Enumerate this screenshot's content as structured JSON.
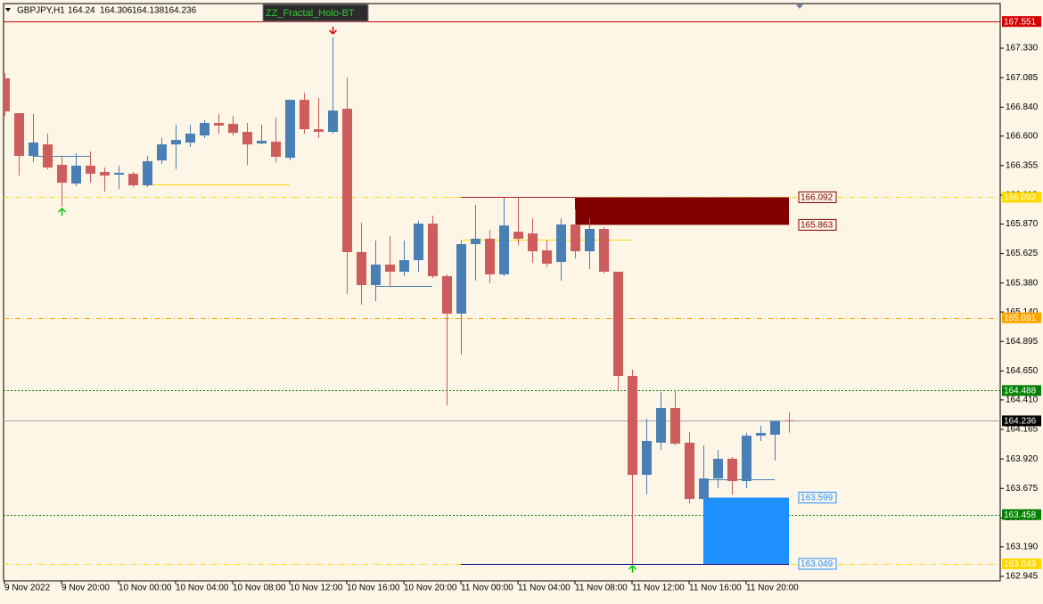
{
  "chart_data": {
    "type": "candlestick",
    "symbol": "GBPJPY,H1",
    "indicator": "ZZ_Fractal_Holo-BT",
    "x": [
      "9 Nov 2022",
      null,
      null,
      null,
      "9 Nov 20:00",
      null,
      null,
      null,
      "10 Nov 00:00",
      null,
      null,
      null,
      "10 Nov 04:00",
      null,
      null,
      null,
      "10 Nov 08:00",
      null,
      null,
      null,
      "10 Nov 12:00",
      null,
      null,
      null,
      "10 Nov 16:00",
      null,
      null,
      null,
      "10 Nov 20:00",
      null,
      null,
      null,
      "11 Nov 00:00",
      null,
      null,
      null,
      "11 Nov 04:00",
      null,
      null,
      null,
      "11 Nov 08:00",
      null,
      null,
      null,
      "11 Nov 12:00",
      null,
      null,
      null,
      "11 Nov 16:00",
      null,
      null,
      null,
      "11 Nov 20:00",
      null,
      null,
      null
    ],
    "open": [
      167.079,
      166.79,
      166.435,
      166.531,
      166.361,
      166.206,
      166.354,
      166.302,
      166.28,
      166.287,
      166.191,
      166.398,
      166.531,
      166.546,
      166.605,
      166.709,
      166.701,
      166.635,
      166.539,
      166.553,
      166.42,
      166.901,
      166.657,
      166.635,
      166.827,
      165.637,
      165.363,
      165.533,
      165.474,
      165.57,
      165.873,
      165.437,
      165.126,
      165.703,
      165.748,
      165.452,
      165.806,
      165.792,
      165.651,
      165.555,
      165.866,
      165.644,
      165.829,
      165.474,
      164.609,
      163.788,
      164.055,
      164.343,
      164.055,
      163.588,
      163.758,
      163.921,
      163.736,
      164.113,
      164.121,
      164.24
    ],
    "high": [
      167.123,
      166.79,
      166.783,
      166.62,
      166.435,
      166.457,
      166.472,
      166.339,
      166.354,
      166.302,
      166.435,
      166.583,
      166.694,
      166.694,
      166.731,
      166.783,
      166.768,
      166.709,
      166.694,
      166.753,
      166.901,
      166.96,
      166.916,
      167.419,
      167.086,
      165.88,
      165.733,
      165.77,
      165.733,
      165.895,
      165.94,
      165.452,
      165.733,
      166.029,
      165.821,
      166.088,
      166.088,
      165.918,
      165.733,
      165.918,
      165.992,
      165.918,
      165.844,
      165.474,
      164.661,
      164.254,
      164.476,
      164.491,
      164.143,
      164.032,
      163.995,
      163.936,
      164.136,
      164.195,
      164.236,
      164.306
    ],
    "low": [
      166.768,
      166.273,
      166.383,
      166.324,
      166.014,
      166.184,
      166.213,
      166.139,
      166.161,
      166.176,
      166.176,
      166.369,
      166.324,
      166.509,
      166.583,
      166.62,
      166.605,
      166.361,
      166.531,
      166.383,
      166.398,
      166.62,
      166.583,
      166.62,
      165.289,
      165.2,
      165.23,
      165.348,
      165.437,
      165.474,
      165.422,
      164.365,
      164.786,
      165.4,
      165.378,
      165.437,
      165.696,
      165.548,
      165.511,
      165.4,
      165.585,
      165.496,
      165.459,
      164.491,
      163.049,
      163.625,
      163.995,
      164.032,
      163.551,
      163.573,
      163.677,
      163.625,
      163.677,
      164.069,
      163.906,
      164.138
    ],
    "close": [
      166.805,
      166.435,
      166.546,
      166.339,
      166.213,
      166.354,
      166.287,
      166.272,
      166.295,
      166.191,
      166.391,
      166.531,
      166.568,
      166.62,
      166.709,
      166.687,
      166.627,
      166.531,
      166.561,
      166.428,
      166.901,
      166.657,
      166.635,
      166.812,
      165.637,
      165.363,
      165.533,
      165.474,
      165.57,
      165.873,
      165.437,
      165.126,
      165.703,
      165.748,
      165.452,
      165.858,
      165.748,
      165.644,
      165.541,
      165.866,
      165.644,
      165.829,
      165.474,
      164.609,
      163.788,
      164.069,
      164.343,
      164.047,
      163.588,
      163.758,
      163.921,
      163.736,
      164.113,
      164.136,
      164.236,
      164.236
    ],
    "up_color": "#4a7fb5",
    "down_color": "#cd5c5c",
    "ylim": [
      162.908,
      167.7
    ],
    "yticks": [
      {
        "value": 167.33,
        "label": "167.330"
      },
      {
        "value": 167.085,
        "label": "167.085"
      },
      {
        "value": 166.84,
        "label": "166.840"
      },
      {
        "value": 166.6,
        "label": "166.600"
      },
      {
        "value": 166.355,
        "label": "166.355"
      },
      {
        "value": 166.11,
        "label": "166.110"
      },
      {
        "value": 165.87,
        "label": "165.870"
      },
      {
        "value": 165.625,
        "label": "165.625"
      },
      {
        "value": 165.38,
        "label": "165.380"
      },
      {
        "value": 165.14,
        "label": "165.140"
      },
      {
        "value": 164.895,
        "label": "164.895"
      },
      {
        "value": 164.65,
        "label": "164.650"
      },
      {
        "value": 164.41,
        "label": "164.410"
      },
      {
        "value": 164.165,
        "label": "164.165"
      },
      {
        "value": 163.92,
        "label": "163.920"
      },
      {
        "value": 163.675,
        "label": "163.675"
      },
      {
        "value": 163.43,
        "label": "163.430"
      },
      {
        "value": 163.19,
        "label": "163.190"
      },
      {
        "value": 162.945,
        "label": "162.945"
      }
    ],
    "levels": [
      {
        "value": 167.551,
        "color": "#d40000",
        "dash": "none",
        "label_fill": "#d40000",
        "label_text": "#ffffff"
      },
      {
        "value": 166.092,
        "color": "#ffd700",
        "dash": "6 3 1 3",
        "label_fill": "#ffd700",
        "label_text": "#ffffff"
      },
      {
        "value": 165.091,
        "color": "#ffa500",
        "dash": "6 3 1 3",
        "label_fill": "#ffa500",
        "label_text": "#ffffff"
      },
      {
        "value": 164.488,
        "color": "#008000",
        "dash": "2 2",
        "label_fill": "#008000",
        "label_text": "#ffffff"
      },
      {
        "value": 164.236,
        "color": "#a0a8b0",
        "dash": "none",
        "label_fill": "#000000",
        "label_text": "#ffffff"
      },
      {
        "value": 163.458,
        "color": "#008000",
        "dash": "2 2",
        "label_fill": "#008000",
        "label_text": "#ffffff"
      },
      {
        "value": 163.049,
        "color": "#ffd700",
        "dash": "6 3 1 3",
        "label_fill": "#ffd700",
        "label_text": "#ffffff"
      }
    ],
    "zones": [
      {
        "top": 166.092,
        "bottom": 165.863,
        "from": 40,
        "to": 55,
        "color": "#800000",
        "label_color": "#800000"
      },
      {
        "top": 163.599,
        "bottom": 163.049,
        "from": 49,
        "to": 55,
        "color": "#1e90ff",
        "label_color": "#1e90ff"
      }
    ],
    "segments": [
      {
        "value": 166.092,
        "from": 32,
        "to": 40,
        "color": "#b22222"
      },
      {
        "value": 163.049,
        "from": 32,
        "to": 55,
        "color": "#000080"
      },
      {
        "value": 166.199,
        "from": 10,
        "to": 20,
        "color": "#ffd700"
      },
      {
        "value": 165.74,
        "from": 32,
        "to": 44,
        "color": "#ffd700"
      },
      {
        "value": 166.435,
        "from": 2,
        "to": 6,
        "color": "#4a7fb5"
      },
      {
        "value": 165.356,
        "from": 26,
        "to": 30,
        "color": "#4a7fb5"
      },
      {
        "value": 163.751,
        "from": 49,
        "to": 54,
        "color": "#4a7fb5"
      }
    ],
    "arrows": [
      {
        "index": 4,
        "dir": "up",
        "color": "#00c800"
      },
      {
        "index": 23,
        "dir": "down",
        "color": "#e00000"
      },
      {
        "index": 44,
        "dir": "up",
        "color": "#00c800"
      }
    ]
  }
}
